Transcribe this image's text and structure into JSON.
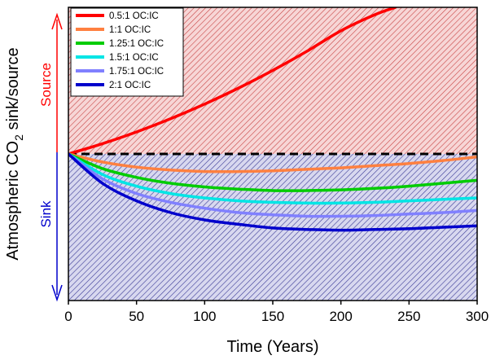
{
  "chart_data": {
    "type": "line",
    "xlabel": "Time (Years)",
    "ylabel_main": "Atmospheric CO",
    "ylabel_sub": "2",
    "ylabel_rest": " sink/source",
    "source_label": "Source",
    "sink_label": "Sink",
    "xlim": [
      0,
      300
    ],
    "ylim": [
      -1.0,
      1.0
    ],
    "xticks": [
      0,
      50,
      100,
      150,
      200,
      250,
      300
    ],
    "grid": false,
    "legend_position": "top-left",
    "zero_line": {
      "y": 0,
      "style": "dashed",
      "color": "#000000"
    },
    "regions": [
      {
        "name": "Source",
        "y_range": [
          0,
          1.0
        ],
        "color": "#e06060",
        "pattern": "hatched"
      },
      {
        "name": "Sink",
        "y_range": [
          -1.0,
          0
        ],
        "color": "#5c5cb0",
        "pattern": "hatched"
      }
    ],
    "x": [
      0,
      25,
      50,
      75,
      100,
      125,
      150,
      175,
      200,
      225,
      250,
      275,
      300
    ],
    "series": [
      {
        "name": "0.5:1 OC:IC",
        "color": "#ff0000",
        "x": [
          0,
          25,
          50,
          75,
          100,
          125,
          150,
          175,
          200,
          225,
          240
        ],
        "values": [
          0,
          0.07,
          0.15,
          0.24,
          0.34,
          0.45,
          0.57,
          0.7,
          0.84,
          0.95,
          1.0
        ]
      },
      {
        "name": "1:1 OC:IC",
        "color": "#ff8040",
        "values": [
          0,
          -0.055,
          -0.09,
          -0.11,
          -0.12,
          -0.12,
          -0.115,
          -0.105,
          -0.095,
          -0.08,
          -0.065,
          -0.045,
          -0.02
        ]
      },
      {
        "name": "1.25:1 OC:IC",
        "color": "#00cc00",
        "values": [
          0,
          -0.1,
          -0.16,
          -0.2,
          -0.225,
          -0.24,
          -0.25,
          -0.25,
          -0.245,
          -0.235,
          -0.22,
          -0.2,
          -0.18
        ]
      },
      {
        "name": "1.5:1 OC:IC",
        "color": "#00e5e5",
        "values": [
          0,
          -0.14,
          -0.22,
          -0.27,
          -0.3,
          -0.32,
          -0.33,
          -0.335,
          -0.335,
          -0.33,
          -0.32,
          -0.31,
          -0.3
        ]
      },
      {
        "name": "1.75:1 OC:IC",
        "color": "#8080ff",
        "values": [
          0,
          -0.17,
          -0.27,
          -0.33,
          -0.37,
          -0.4,
          -0.415,
          -0.425,
          -0.425,
          -0.42,
          -0.41,
          -0.4,
          -0.385
        ]
      },
      {
        "name": "2:1 OC:IC",
        "color": "#0000cc",
        "values": [
          0,
          -0.2,
          -0.32,
          -0.4,
          -0.45,
          -0.48,
          -0.505,
          -0.515,
          -0.52,
          -0.515,
          -0.51,
          -0.5,
          -0.49
        ]
      }
    ]
  }
}
